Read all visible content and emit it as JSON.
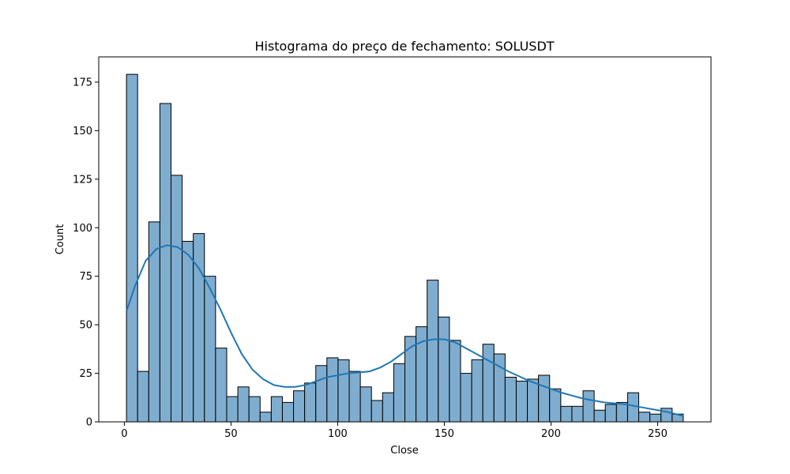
{
  "chart_data": {
    "type": "bar",
    "title": "Histograma do preço de fechamento: SOLUSDT",
    "xlabel": "Close",
    "ylabel": "Count",
    "xlim": [
      -12,
      275
    ],
    "ylim": [
      0,
      188
    ],
    "xticks": [
      0,
      50,
      100,
      150,
      200,
      250
    ],
    "yticks": [
      0,
      25,
      50,
      75,
      100,
      125,
      150,
      175
    ],
    "grid": false,
    "bar_color": "#7fadcf",
    "bar_edge_color": "#000000",
    "kde_color": "#1f77b4",
    "bins": {
      "start": 1.0,
      "width": 5.22,
      "counts": [
        179,
        26,
        103,
        164,
        127,
        93,
        97,
        75,
        38,
        13,
        18,
        13,
        5,
        13,
        10,
        16,
        20,
        29,
        33,
        32,
        26,
        18,
        11,
        15,
        30,
        44,
        49,
        73,
        54,
        42,
        25,
        32,
        40,
        35,
        23,
        21,
        22,
        24,
        17,
        8,
        8,
        16,
        6,
        9,
        10,
        15,
        5,
        4,
        7,
        4
      ]
    },
    "kde_curve": {
      "x": [
        1,
        5,
        10,
        15,
        20,
        25,
        30,
        35,
        40,
        45,
        50,
        55,
        60,
        65,
        70,
        75,
        80,
        85,
        90,
        95,
        100,
        105,
        110,
        115,
        120,
        125,
        130,
        135,
        140,
        145,
        150,
        155,
        160,
        165,
        170,
        175,
        180,
        185,
        190,
        195,
        200,
        205,
        210,
        215,
        220,
        225,
        230,
        235,
        240,
        245,
        250,
        255,
        262
      ],
      "y": [
        57,
        70,
        83,
        89,
        91,
        90,
        86,
        79,
        69,
        58,
        46,
        35,
        27,
        22,
        19,
        18,
        18,
        19,
        21,
        23,
        24,
        25,
        25.5,
        26,
        28,
        31,
        35,
        39,
        41.5,
        42.5,
        42.5,
        41,
        38,
        35,
        32,
        29,
        26,
        23.5,
        21,
        19,
        17,
        15,
        13.5,
        12,
        11,
        10,
        9.5,
        9,
        8,
        7,
        6,
        5,
        3
      ]
    }
  }
}
